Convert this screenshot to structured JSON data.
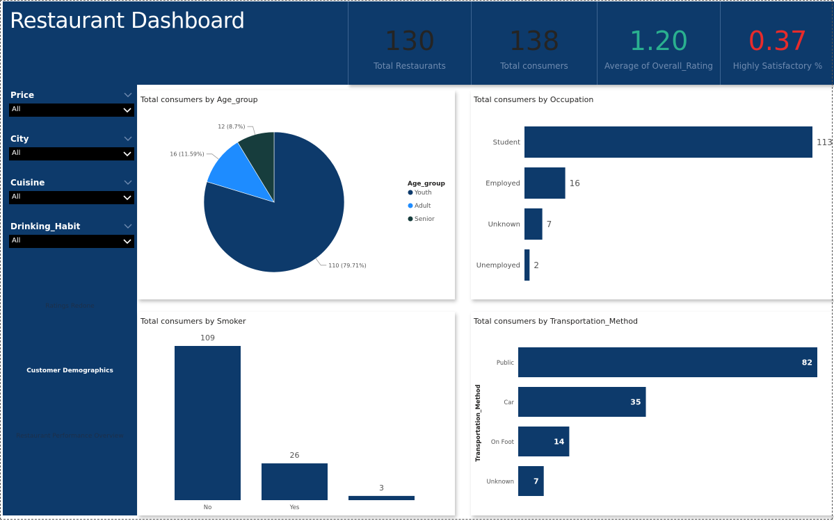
{
  "title": "Restaurant Dashboard",
  "colors": {
    "navy": "#0d3a6b",
    "accent_blue": "#1e8cff",
    "dark_teal": "#173d3d",
    "kpi_green": "#2ab08f",
    "kpi_red": "#e82b2b",
    "kpi_dark": "#252423"
  },
  "kpis": [
    {
      "value": "130",
      "label": "Total Restaurants",
      "color": "#252423"
    },
    {
      "value": "138",
      "label": "Total consumers",
      "color": "#252423"
    },
    {
      "value": "1.20",
      "label": "Average of Overall_Rating",
      "color": "#2ab08f"
    },
    {
      "value": "0.37",
      "label": "Highly Satisfactory %",
      "color": "#e82b2b"
    }
  ],
  "slicers": [
    {
      "label": "Price",
      "value": "All"
    },
    {
      "label": "City",
      "value": "All"
    },
    {
      "label": "Cuisine",
      "value": "All"
    },
    {
      "label": "Drinking_Habit",
      "value": "All"
    }
  ],
  "nav": [
    {
      "label": "Ratings Redone",
      "active": false
    },
    {
      "label": "Customer Demographics",
      "active": true
    },
    {
      "label": "Restaurant Performance Overview",
      "active": false
    }
  ],
  "chart_data": [
    {
      "type": "pie",
      "title": "Total consumers by Age_group",
      "legend_title": "Age_group",
      "legend_position": "right",
      "slices": [
        {
          "name": "Youth",
          "value": 110,
          "label": "110 (79.71%)",
          "color": "#0d3a6b"
        },
        {
          "name": "Adult",
          "value": 16,
          "label": "16 (11.59%)",
          "color": "#1e8cff"
        },
        {
          "name": "Senior",
          "value": 12,
          "label": "12 (8.7%)",
          "color": "#173d3d"
        }
      ]
    },
    {
      "type": "bar",
      "orientation": "horizontal",
      "title": "Total consumers by Occupation",
      "categories": [
        "Student",
        "Employed",
        "Unknown",
        "Unemployed"
      ],
      "values": [
        113,
        16,
        7,
        2
      ],
      "xlim": [
        0,
        113
      ]
    },
    {
      "type": "bar",
      "orientation": "vertical",
      "title": "Total consumers by Smoker",
      "categories": [
        "No",
        "Yes",
        ""
      ],
      "values": [
        109,
        26,
        3
      ],
      "ylim": [
        0,
        109
      ]
    },
    {
      "type": "bar",
      "orientation": "horizontal",
      "title": "Total consumers by Transportation_Method",
      "ylabel": "Transportation_Method",
      "categories": [
        "Public",
        "Car",
        "On Foot",
        "Unknown"
      ],
      "values": [
        82,
        35,
        14,
        7
      ],
      "xlim": [
        0,
        82
      ]
    }
  ]
}
